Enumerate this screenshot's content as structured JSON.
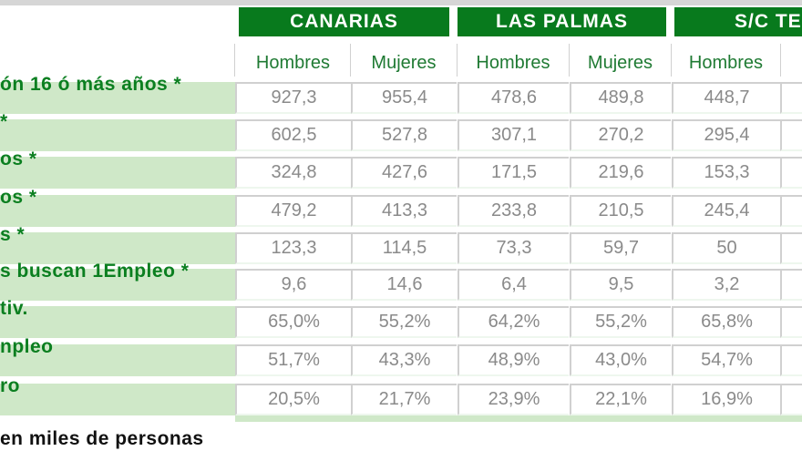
{
  "regions": [
    "CANARIAS",
    "LAS PALMAS",
    "S/C TE"
  ],
  "columns": [
    "Hombres",
    "Mujeres",
    "Hombres",
    "Mujeres",
    "Hombres"
  ],
  "rows": [
    {
      "label": "ón 16 ó más años *",
      "values": [
        "927,3",
        "955,4",
        "478,6",
        "489,8",
        "448,7"
      ]
    },
    {
      "label": " *",
      "values": [
        "602,5",
        "527,8",
        "307,1",
        "270,2",
        "295,4"
      ]
    },
    {
      "label": "os *",
      "values": [
        "324,8",
        "427,6",
        "171,5",
        "219,6",
        "153,3"
      ]
    },
    {
      "label": "os *",
      "values": [
        "479,2",
        "413,3",
        "233,8",
        "210,5",
        "245,4"
      ]
    },
    {
      "label": "s *",
      "values": [
        "123,3",
        "114,5",
        "73,3",
        "59,7",
        "50"
      ]
    },
    {
      "label": "s buscan 1Empleo *",
      "values": [
        "9,6",
        "14,6",
        "6,4",
        "9,5",
        "3,2"
      ]
    },
    {
      "label": "tiv.",
      "values": [
        "65,0%",
        "55,2%",
        "64,2%",
        "55,2%",
        "65,8%"
      ]
    },
    {
      "label": "npleo",
      "values": [
        "51,7%",
        "43,3%",
        "48,9%",
        "43,0%",
        "54,7%"
      ]
    },
    {
      "label": "ro",
      "values": [
        "20,5%",
        "21,7%",
        "23,9%",
        "22,1%",
        "16,9%"
      ]
    }
  ],
  "footnote": "en miles de personas",
  "colors": {
    "header_green": "#087a1d",
    "label_green": "#0b7f20",
    "row_bg": "#cfe8c8",
    "value_gray": "#8a8a8a"
  }
}
